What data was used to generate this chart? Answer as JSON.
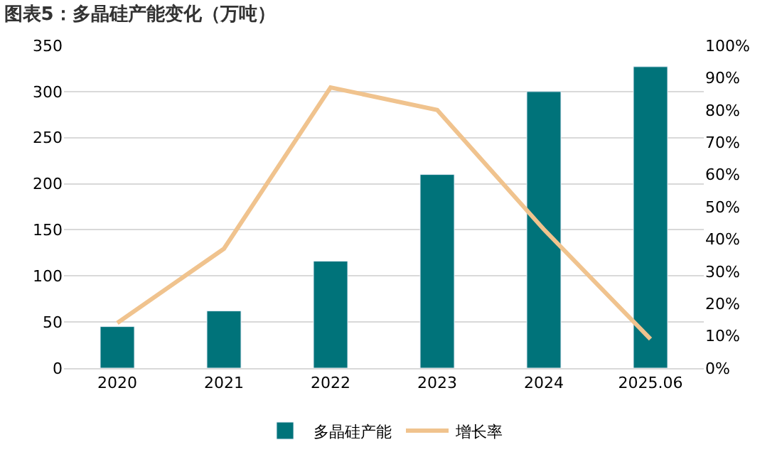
{
  "chart_data": {
    "type": "bar",
    "title": "图表5：多晶硅产能变化（万吨）",
    "categories": [
      "2020",
      "2021",
      "2022",
      "2023",
      "2024",
      "2025.06"
    ],
    "series": [
      {
        "name": "多晶硅产能",
        "color": "#00737a",
        "values": [
          45,
          62,
          116,
          210,
          300,
          327
        ]
      },
      {
        "name": "增长率",
        "type": "line",
        "axis": "y2",
        "color": "#f0c38e",
        "values": [
          14,
          37,
          87,
          80,
          43,
          9
        ]
      }
    ],
    "ylim": [
      0,
      350
    ],
    "yticks": [
      0,
      50,
      100,
      150,
      200,
      250,
      300,
      350
    ],
    "y2lim": [
      0,
      100
    ],
    "y2ticks": [
      {
        "value": 0,
        "label": "0%"
      },
      {
        "value": 10,
        "label": "10%"
      },
      {
        "value": 20,
        "label": "20%"
      },
      {
        "value": 30,
        "label": "30%"
      },
      {
        "value": 40,
        "label": "40%"
      },
      {
        "value": 50,
        "label": "50%"
      },
      {
        "value": 60,
        "label": "60%"
      },
      {
        "value": 70,
        "label": "70%"
      },
      {
        "value": 80,
        "label": "80%"
      },
      {
        "value": 90,
        "label": "90%"
      },
      {
        "value": 100,
        "label": "100%"
      }
    ],
    "grid": "y",
    "legend": "bottom",
    "marker": "none",
    "line_style": "solid"
  }
}
